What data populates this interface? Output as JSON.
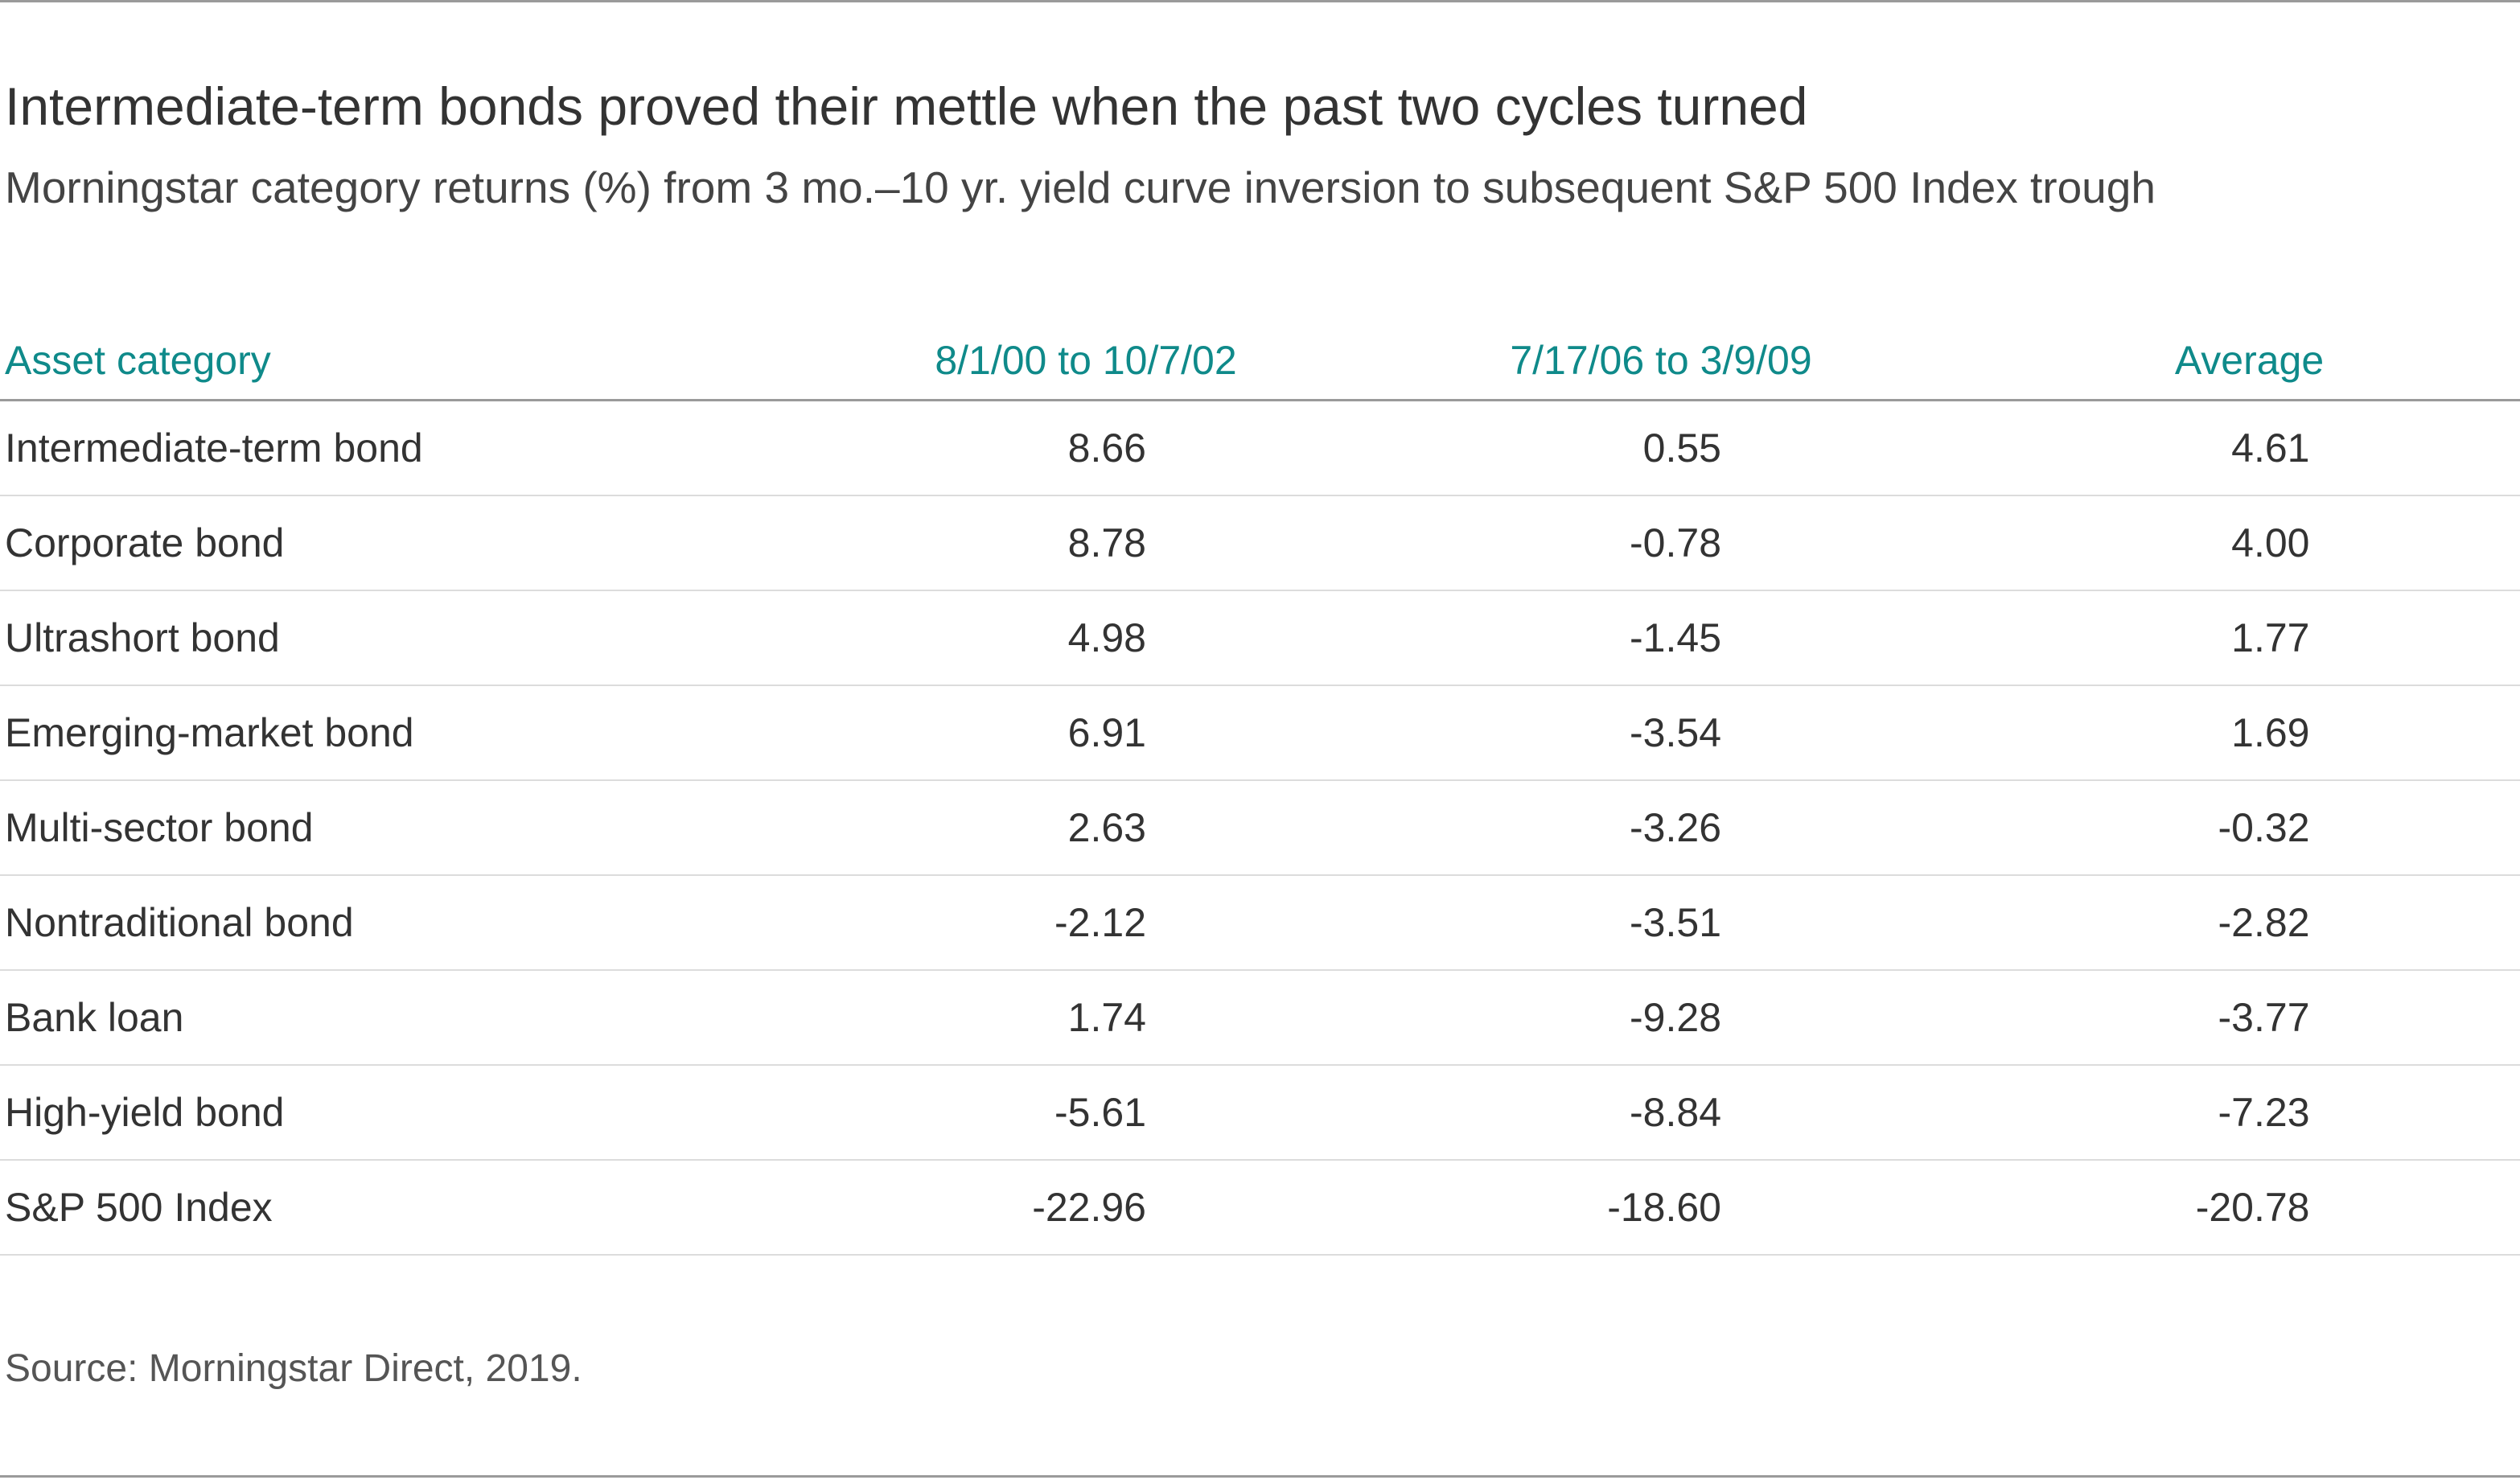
{
  "chart_data": {
    "type": "table",
    "title": "Intermediate-term bonds proved their mettle when the past two cycles turned",
    "subtitle": "Morningstar category returns (%) from 3 mo.–10 yr. yield curve inversion to subsequent S&P 500 Index trough",
    "columns": [
      "Asset category",
      "8/1/00 to 10/7/02",
      "7/17/06 to 3/9/09",
      "Average"
    ],
    "rows": [
      {
        "category": "Intermediate-term bond",
        "p1": "8.66",
        "p2": "0.55",
        "avg": "4.61"
      },
      {
        "category": "Corporate bond",
        "p1": "8.78",
        "p2": "-0.78",
        "avg": "4.00"
      },
      {
        "category": "Ultrashort bond",
        "p1": "4.98",
        "p2": "-1.45",
        "avg": "1.77"
      },
      {
        "category": "Emerging-market bond",
        "p1": "6.91",
        "p2": "-3.54",
        "avg": "1.69"
      },
      {
        "category": "Multi-sector bond",
        "p1": "2.63",
        "p2": "-3.26",
        "avg": "-0.32"
      },
      {
        "category": "Nontraditional bond",
        "p1": "-2.12",
        "p2": "-3.51",
        "avg": "-2.82"
      },
      {
        "category": "Bank loan",
        "p1": "1.74",
        "p2": "-9.28",
        "avg": "-3.77"
      },
      {
        "category": "High-yield bond",
        "p1": "-5.61",
        "p2": "-8.84",
        "avg": "-7.23"
      },
      {
        "category": "S&P 500 Index",
        "p1": "-22.96",
        "p2": "-18.60",
        "avg": "-20.78"
      }
    ],
    "source": "Source: Morningstar Direct, 2019."
  },
  "colors": {
    "header_text": "#0f8a8a",
    "body_text": "#333333",
    "rule": "#9a9a9a"
  }
}
